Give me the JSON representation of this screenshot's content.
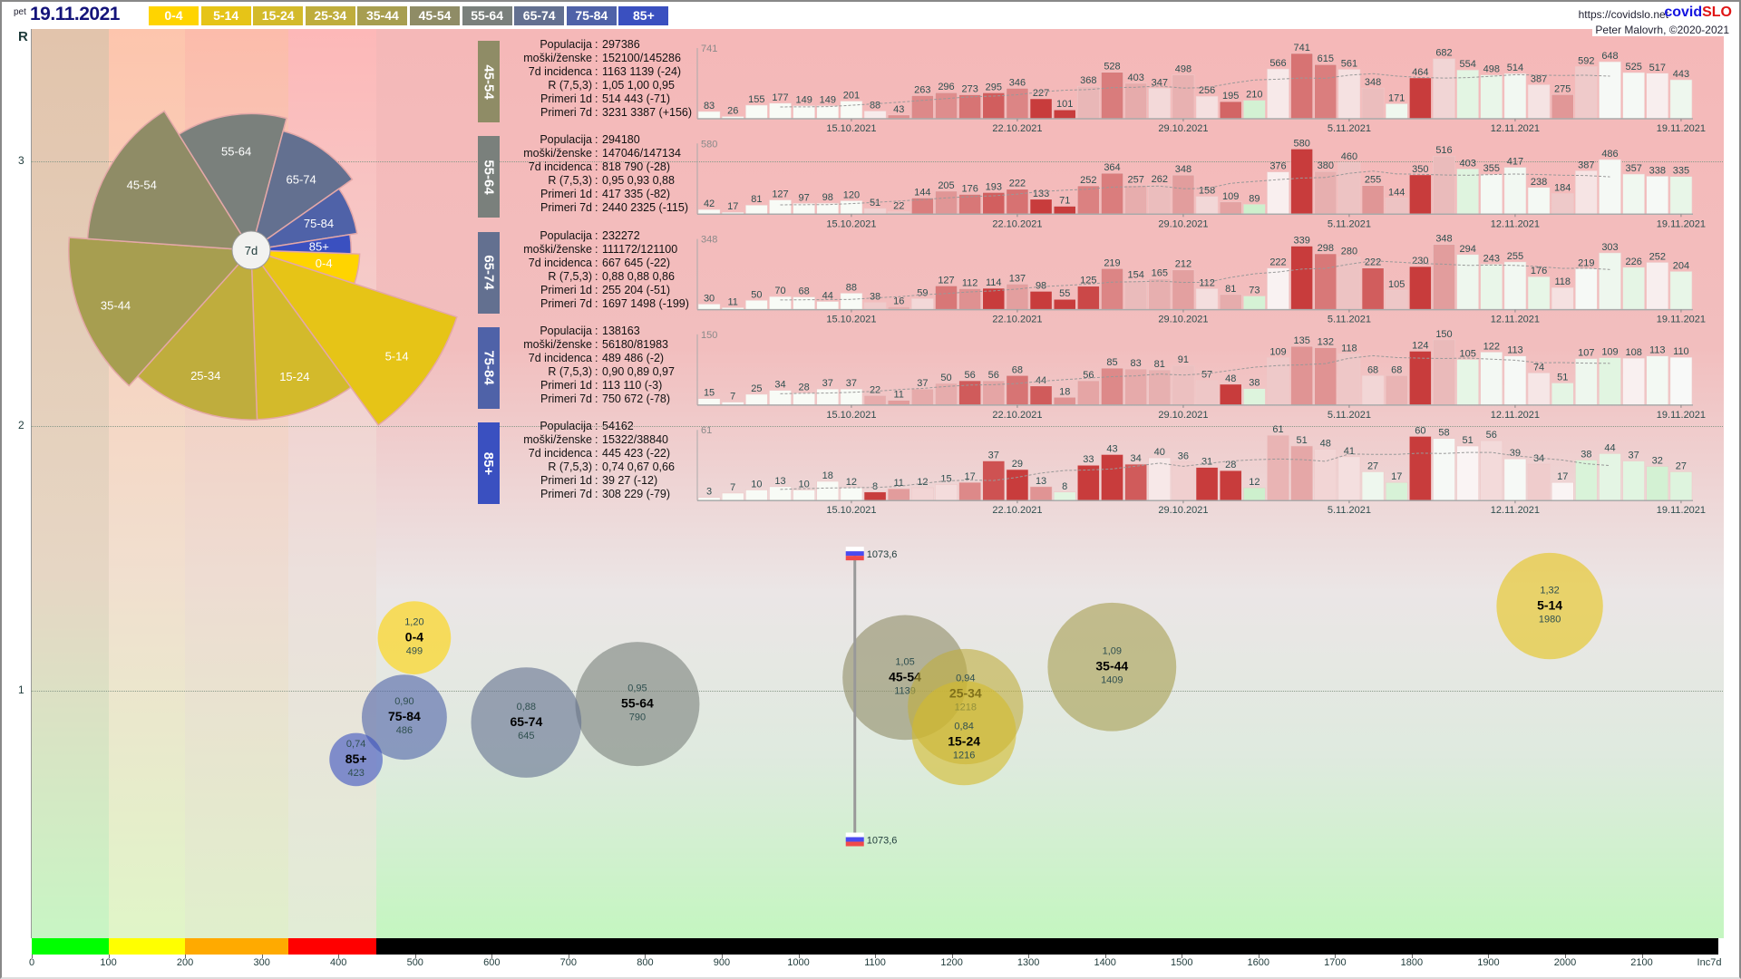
{
  "header": {
    "weekday": "pet",
    "date": "19.11.2021",
    "url": "https://covidslo.net",
    "brand_a": "covid",
    "brand_b": "SLO",
    "author": "Peter Malovrh, ©2020-2021"
  },
  "age_groups": [
    {
      "label": "0-4",
      "color": "#ffd400"
    },
    {
      "label": "5-14",
      "color": "#e6c417"
    },
    {
      "label": "15-24",
      "color": "#d3ba2b"
    },
    {
      "label": "25-34",
      "color": "#bfad3d"
    },
    {
      "label": "35-44",
      "color": "#a79e50"
    },
    {
      "label": "45-54",
      "color": "#8f8c66"
    },
    {
      "label": "55-64",
      "color": "#7a807c"
    },
    {
      "label": "65-74",
      "color": "#637090"
    },
    {
      "label": "75-84",
      "color": "#4f62a8"
    },
    {
      "label": "85+",
      "color": "#3a50c0"
    }
  ],
  "stat_labels": [
    "Populacija",
    "moški/ženske",
    "7d incidenca",
    "R (7,5,3)",
    "Primeri 1d",
    "Primeri 7d"
  ],
  "panels": [
    {
      "group": "45-54",
      "color": "#8f8c66",
      "stats": [
        "297386",
        "152100/145286",
        "1163 1139 (-24)",
        "1,05 1,00 0,95",
        "514 443 (-71)",
        "3231 3387 (+156)"
      ]
    },
    {
      "group": "55-64",
      "color": "#7a807c",
      "stats": [
        "294180",
        "147046/147134",
        "818 790 (-28)",
        "0,95 0,93 0,88",
        "417 335 (-82)",
        "2440 2325 (-115)"
      ]
    },
    {
      "group": "65-74",
      "color": "#637090",
      "stats": [
        "232272",
        "111172/121100",
        "667 645 (-22)",
        "0,88 0,88 0,86",
        "255 204 (-51)",
        "1697 1498 (-199)"
      ]
    },
    {
      "group": "75-84",
      "color": "#4f62a8",
      "stats": [
        "138163",
        "56180/81983",
        "489 486 (-2)",
        "0,90 0,89 0,97",
        "113 110 (-3)",
        "750 672 (-78)"
      ]
    },
    {
      "group": "85+",
      "color": "#3a50c0",
      "stats": [
        "54162",
        "15322/38840",
        "445 423 (-22)",
        "0,74 0,67 0,66",
        "39 27 (-12)",
        "308 229 (-79)"
      ]
    }
  ],
  "chart_data": [
    {
      "type": "pie",
      "title": "7d",
      "start_angle_deg": 2,
      "slices": [
        {
          "label": "0-4",
          "angle_deg": 16,
          "inc7d": 499
        },
        {
          "label": "5-14",
          "angle_deg": 36,
          "inc7d": 1980
        },
        {
          "label": "15-24",
          "angle_deg": 34,
          "inc7d": 1216
        },
        {
          "label": "25-34",
          "angle_deg": 44,
          "inc7d": 1218
        },
        {
          "label": "35-44",
          "angle_deg": 52,
          "inc7d": 1409
        },
        {
          "label": "45-54",
          "angle_deg": 54,
          "inc7d": 1139
        },
        {
          "label": "55-64",
          "angle_deg": 47,
          "inc7d": 790
        },
        {
          "label": "65-74",
          "angle_deg": 40,
          "inc7d": 645
        },
        {
          "label": "75-84",
          "angle_deg": 26,
          "inc7d": 486
        },
        {
          "label": "85+",
          "angle_deg": 11,
          "inc7d": 423
        }
      ]
    },
    {
      "type": "bar",
      "group": "45-54",
      "max_label": "741",
      "x_ticks": [
        {
          "i": 6,
          "label": "15.10.2021"
        },
        {
          "i": 13,
          "label": "22.10.2021"
        },
        {
          "i": 20,
          "label": "29.10.2021"
        },
        {
          "i": 27,
          "label": "5.11.2021"
        },
        {
          "i": 34,
          "label": "12.11.2021"
        },
        {
          "i": 41,
          "label": "19.11.2021"
        }
      ],
      "values": [
        83,
        26,
        155,
        177,
        149,
        149,
        201,
        88,
        43,
        263,
        296,
        273,
        295,
        346,
        227,
        101,
        368,
        528,
        403,
        347,
        498,
        256,
        195,
        210,
        566,
        741,
        615,
        561,
        348,
        171,
        464,
        682,
        554,
        498,
        514,
        387,
        275,
        592,
        648,
        525,
        517,
        443
      ]
    },
    {
      "type": "bar",
      "group": "55-64",
      "max_label": "580",
      "x_ticks": [
        {
          "i": 6,
          "label": "15.10.2021"
        },
        {
          "i": 13,
          "label": "22.10.2021"
        },
        {
          "i": 20,
          "label": "29.10.2021"
        },
        {
          "i": 27,
          "label": "5.11.2021"
        },
        {
          "i": 34,
          "label": "12.11.2021"
        },
        {
          "i": 41,
          "label": "19.11.2021"
        }
      ],
      "values": [
        42,
        17,
        81,
        127,
        97,
        98,
        120,
        51,
        22,
        144,
        205,
        176,
        193,
        222,
        133,
        71,
        252,
        364,
        257,
        262,
        348,
        158,
        109,
        89,
        376,
        580,
        380,
        460,
        255,
        144,
        350,
        516,
        403,
        355,
        417,
        238,
        184,
        387,
        486,
        357,
        338,
        335
      ]
    },
    {
      "type": "bar",
      "group": "65-74",
      "max_label": "348",
      "x_ticks": [
        {
          "i": 6,
          "label": "15.10.2021"
        },
        {
          "i": 13,
          "label": "22.10.2021"
        },
        {
          "i": 20,
          "label": "29.10.2021"
        },
        {
          "i": 27,
          "label": "5.11.2021"
        },
        {
          "i": 34,
          "label": "12.11.2021"
        },
        {
          "i": 41,
          "label": "19.11.2021"
        }
      ],
      "values": [
        30,
        11,
        50,
        70,
        68,
        44,
        88,
        38,
        16,
        59,
        127,
        112,
        114,
        137,
        98,
        55,
        125,
        219,
        154,
        165,
        212,
        112,
        81,
        73,
        222,
        339,
        298,
        280,
        222,
        105,
        230,
        348,
        294,
        243,
        255,
        176,
        118,
        219,
        303,
        226,
        252,
        204
      ]
    },
    {
      "type": "bar",
      "group": "75-84",
      "max_label": "150",
      "x_ticks": [
        {
          "i": 6,
          "label": "15.10.2021"
        },
        {
          "i": 13,
          "label": "22.10.2021"
        },
        {
          "i": 20,
          "label": "29.10.2021"
        },
        {
          "i": 27,
          "label": "5.11.2021"
        },
        {
          "i": 34,
          "label": "12.11.2021"
        },
        {
          "i": 41,
          "label": "19.11.2021"
        }
      ],
      "values": [
        15,
        7,
        25,
        34,
        28,
        37,
        37,
        22,
        11,
        37,
        50,
        56,
        56,
        68,
        44,
        18,
        56,
        85,
        83,
        81,
        91,
        57,
        48,
        38,
        109,
        135,
        132,
        118,
        68,
        68,
        124,
        150,
        105,
        122,
        113,
        74,
        51,
        107,
        109,
        108,
        113,
        110
      ]
    },
    {
      "type": "bar",
      "group": "85+",
      "max_label": "61",
      "x_ticks": [
        {
          "i": 6,
          "label": "15.10.2021"
        },
        {
          "i": 13,
          "label": "22.10.2021"
        },
        {
          "i": 20,
          "label": "29.10.2021"
        },
        {
          "i": 27,
          "label": "5.11.2021"
        },
        {
          "i": 34,
          "label": "12.11.2021"
        },
        {
          "i": 41,
          "label": "19.11.2021"
        }
      ],
      "values": [
        3,
        7,
        10,
        13,
        10,
        18,
        12,
        8,
        11,
        12,
        15,
        17,
        37,
        29,
        13,
        8,
        33,
        43,
        34,
        40,
        36,
        31,
        28,
        12,
        61,
        51,
        48,
        41,
        27,
        17,
        60,
        58,
        51,
        56,
        39,
        34,
        17,
        38,
        44,
        37,
        32,
        27
      ]
    },
    {
      "type": "scatter",
      "ylabel": "R",
      "xlabel": "Inc7d",
      "xlim": [
        0,
        2200
      ],
      "x_ticks": [
        "0",
        "100",
        "200",
        "300",
        "400",
        "500",
        "600",
        "700",
        "800",
        "900",
        "1000",
        "1100",
        "1200",
        "1300",
        "1400",
        "1500",
        "1600",
        "1700",
        "1800",
        "1900",
        "2000",
        "2100"
      ],
      "y_ticks": [
        "1",
        "2",
        "3"
      ],
      "color_scale": [
        {
          "from": 0,
          "to": 100,
          "color": "#00ff00"
        },
        {
          "from": 100,
          "to": 200,
          "color": "#ffff00"
        },
        {
          "from": 200,
          "to": 335,
          "color": "#ffaa00"
        },
        {
          "from": 335,
          "to": 450,
          "color": "#ff0000"
        },
        {
          "from": 450,
          "to": 2200,
          "color": "#000000"
        }
      ],
      "reference": {
        "label": "1073,6",
        "x": 1073.6,
        "y_top": 1.52,
        "y_bottom": 0.44
      },
      "points": [
        {
          "label": "0-4",
          "r_text": "1,20",
          "inc_text": "499",
          "x": 499,
          "y": 1.2,
          "size": 102
        },
        {
          "label": "5-14",
          "r_text": "1,32",
          "inc_text": "1980",
          "x": 1980,
          "y": 1.32,
          "size": 216
        },
        {
          "label": "15-24",
          "r_text": "0,84",
          "inc_text": "1216",
          "x": 1216,
          "y": 0.84,
          "size": 207
        },
        {
          "label": "25-34",
          "r_text": "0,94",
          "inc_text": "1218",
          "x": 1218,
          "y": 0.94,
          "size": 254
        },
        {
          "label": "35-44",
          "r_text": "1,09",
          "inc_text": "1409",
          "x": 1409,
          "y": 1.09,
          "size": 315
        },
        {
          "label": "45-54",
          "r_text": "1,05",
          "inc_text": "1139",
          "x": 1139,
          "y": 1.05,
          "size": 297
        },
        {
          "label": "55-64",
          "r_text": "0,95",
          "inc_text": "790",
          "x": 790,
          "y": 0.95,
          "size": 294
        },
        {
          "label": "65-74",
          "r_text": "0,88",
          "inc_text": "645",
          "x": 645,
          "y": 0.88,
          "size": 232
        },
        {
          "label": "75-84",
          "r_text": "0,90",
          "inc_text": "486",
          "x": 486,
          "y": 0.9,
          "size": 138
        },
        {
          "label": "85+",
          "r_text": "0,74",
          "inc_text": "423",
          "x": 423,
          "y": 0.74,
          "size": 54
        }
      ]
    }
  ]
}
